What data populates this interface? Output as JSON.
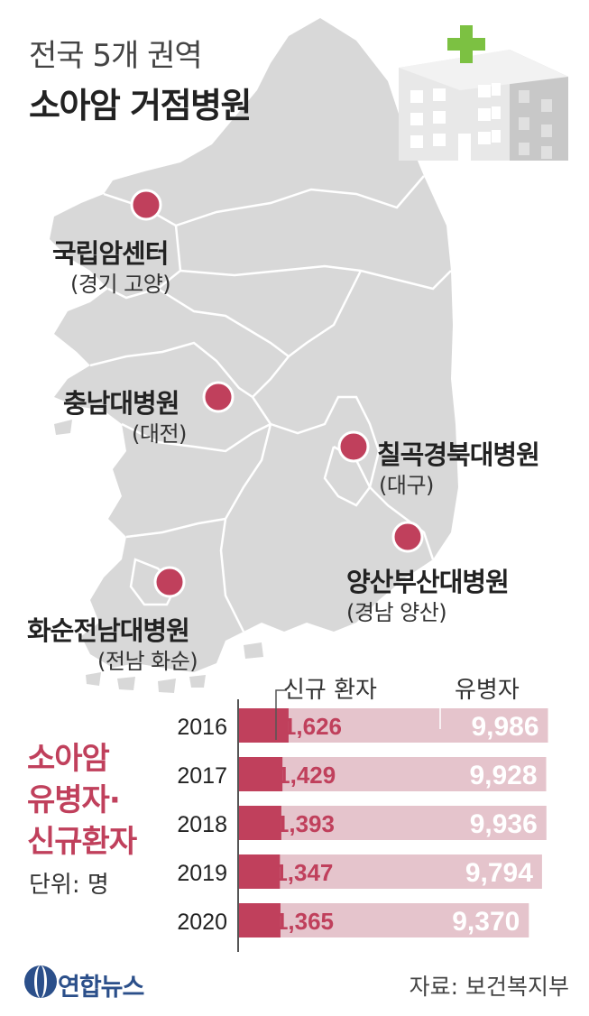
{
  "title": {
    "line1": "전국 5개 권역",
    "line2": "소아암 거점병원"
  },
  "hospitals": [
    {
      "name": "국립암센터",
      "location": "(경기 고양)"
    },
    {
      "name": "충남대병원",
      "location": "(대전)"
    },
    {
      "name": "칠곡경북대병원",
      "location": "(대구)"
    },
    {
      "name": "양산부산대병원",
      "location": "(경남 양산)"
    },
    {
      "name": "화순전남대병원",
      "location": "(전남 화순)"
    }
  ],
  "side_title": [
    "소아암",
    "유병자·",
    "신규환자"
  ],
  "unit": "단위: 명",
  "source": "자료: 보건복지부",
  "logo": "연합뉴스",
  "colors": {
    "accent": "#c0405c",
    "prevalence_bar": "#e5c4cc",
    "map": "#d8d8d8",
    "map_border": "#ffffff"
  },
  "chart_data": {
    "type": "bar",
    "orientation": "horizontal",
    "categories": [
      "2016",
      "2017",
      "2018",
      "2019",
      "2020"
    ],
    "series": [
      {
        "name": "신규 환자",
        "values": [
          1626,
          1429,
          1393,
          1347,
          1365
        ]
      },
      {
        "name": "유병자",
        "values": [
          9986,
          9928,
          9936,
          9794,
          9370
        ]
      }
    ],
    "value_labels": {
      "new": [
        "1,626",
        "1,429",
        "1,393",
        "1,347",
        "1,365"
      ],
      "prevalence": [
        "9,986",
        "9,928",
        "9,936",
        "9,794",
        "9,370"
      ]
    },
    "xlim": [
      0,
      10000
    ],
    "grid": false
  }
}
